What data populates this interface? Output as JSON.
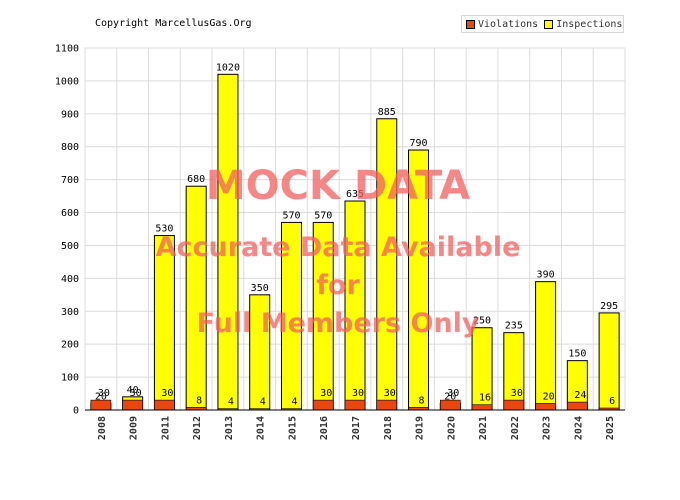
{
  "copyright": "Copyright MarcellusGas.Org",
  "watermark": {
    "line1": "MOCK DATA",
    "line2": "Accurate Data Available",
    "line3": "for",
    "line4": "Full Members Only"
  },
  "legend": {
    "violations_label": "Violations",
    "inspections_label": "Inspections"
  },
  "colors": {
    "violations": "#e8470f",
    "inspections": "#ffff00",
    "grid": "#dcdcdc",
    "watermark": "#f45f5f"
  },
  "chart_data": {
    "type": "bar",
    "categories": [
      "2008",
      "2009",
      "2011",
      "2012",
      "2013",
      "2014",
      "2015",
      "2016",
      "2017",
      "2018",
      "2019",
      "2020",
      "2021",
      "2022",
      "2023",
      "2024",
      "2025"
    ],
    "series": [
      {
        "name": "Violations",
        "values": [
          30,
          30,
          30,
          8,
          4,
          4,
          4,
          30,
          30,
          30,
          8,
          30,
          16,
          30,
          20,
          24,
          6
        ]
      },
      {
        "name": "Inspections",
        "values": [
          20,
          40,
          530,
          680,
          1020,
          350,
          570,
          570,
          635,
          885,
          790,
          20,
          250,
          235,
          390,
          150,
          295
        ]
      }
    ],
    "ylim": [
      0,
      1100
    ],
    "yticks": [
      0,
      100,
      200,
      300,
      400,
      500,
      600,
      700,
      800,
      900,
      1000,
      1100
    ],
    "grid": true,
    "legend_position": "top-right"
  }
}
